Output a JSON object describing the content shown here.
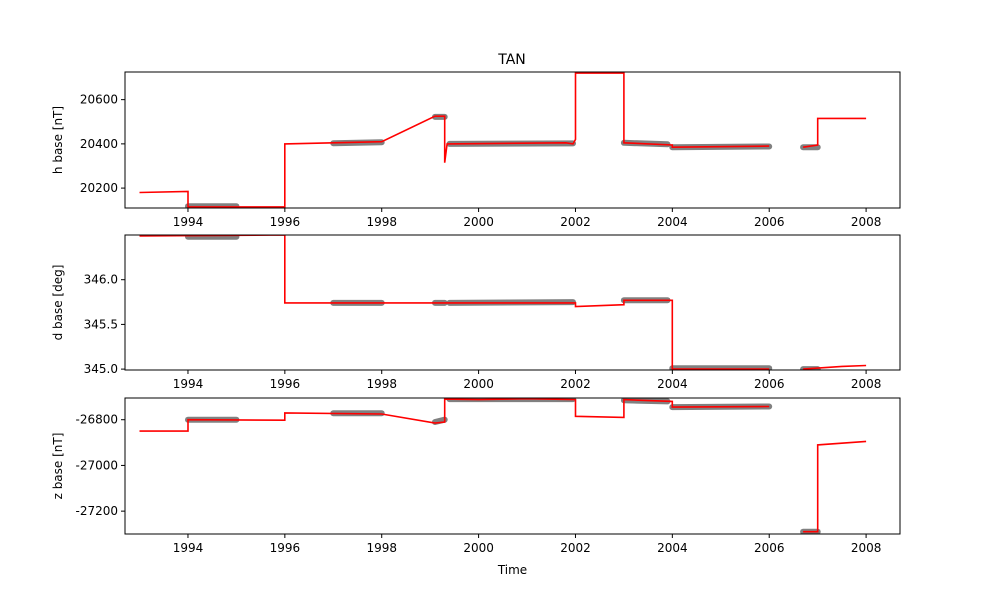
{
  "title": "TAN",
  "colors": {
    "observed": "#808080",
    "baseline": "#ff0000",
    "axes": "#000000"
  },
  "chart_data": [
    {
      "type": "line",
      "ylabel": "h base [nT]",
      "xlabel": "",
      "xlim": [
        1992.7,
        2008.7
      ],
      "ylim": [
        20110,
        20725
      ],
      "xticks": [
        "1994",
        "1996",
        "1998",
        "2000",
        "2002",
        "2004",
        "2006",
        "2008"
      ],
      "yticks": [
        "20200",
        "20400",
        "20600"
      ],
      "grid": false,
      "series": [
        {
          "role": "baseline",
          "color": "#ff0000",
          "x": [
            1993.0,
            1994.0,
            1994.0,
            1996.0,
            1996.0,
            1998.0,
            1999.1,
            1999.3,
            1999.3,
            1999.35,
            1999.35,
            2001.8,
            2001.95,
            2002.0,
            2002.0,
            2003.0,
            2003.0,
            2004.0,
            2004.0,
            2006.0,
            null,
            2006.7,
            2007.0,
            2007.0,
            2008.0
          ],
          "y": [
            20180,
            20185,
            20115,
            20115,
            20400,
            20410,
            20525,
            20525,
            20315,
            20400,
            20400,
            20405,
            20400,
            20420,
            20720,
            20720,
            20405,
            20395,
            20385,
            20390,
            null,
            20385,
            20395,
            20515,
            20515
          ]
        },
        {
          "role": "observed",
          "color": "#808080",
          "segments": [
            {
              "x": [
                1994.0,
                1995.0
              ],
              "y": [
                20118,
                20118
              ]
            },
            {
              "x": [
                1997.0,
                1998.0
              ],
              "y": [
                20403,
                20407
              ]
            },
            {
              "x": [
                1999.1,
                1999.3
              ],
              "y": [
                20522,
                20522
              ]
            },
            {
              "x": [
                1999.4,
                2001.95
              ],
              "y": [
                20400,
                20402
              ]
            },
            {
              "x": [
                2003.0,
                2003.9
              ],
              "y": [
                20405,
                20398
              ]
            },
            {
              "x": [
                2004.0,
                2006.0
              ],
              "y": [
                20385,
                20388
              ]
            },
            {
              "x": [
                2006.7,
                2007.0
              ],
              "y": [
                20385,
                20385
              ]
            }
          ]
        }
      ]
    },
    {
      "type": "line",
      "ylabel": "d base [deg]",
      "xlabel": "",
      "xlim": [
        1992.7,
        2008.7
      ],
      "ylim": [
        344.99,
        346.5
      ],
      "xticks": [
        "1994",
        "1996",
        "1998",
        "2000",
        "2002",
        "2004",
        "2006",
        "2008"
      ],
      "yticks": [
        "345.0",
        "345.5",
        "346.0"
      ],
      "grid": false,
      "series": [
        {
          "role": "baseline",
          "color": "#ff0000",
          "x": [
            1993.0,
            1996.0,
            1996.0,
            2002.0,
            2002.0,
            2003.0,
            2003.0,
            2004.0,
            2004.0,
            2006.0,
            null,
            2006.7,
            2007.5,
            2008.0
          ],
          "y": [
            346.49,
            346.5,
            345.74,
            345.74,
            345.7,
            345.72,
            345.77,
            345.77,
            345.0,
            345.0,
            null,
            345.0,
            345.03,
            345.04
          ]
        },
        {
          "role": "observed",
          "color": "#808080",
          "segments": [
            {
              "x": [
                1994.0,
                1995.0
              ],
              "y": [
                346.48,
                346.48
              ]
            },
            {
              "x": [
                1997.0,
                1998.0
              ],
              "y": [
                345.74,
                345.74
              ]
            },
            {
              "x": [
                1999.1,
                1999.3
              ],
              "y": [
                345.74,
                345.74
              ]
            },
            {
              "x": [
                1999.4,
                2001.95
              ],
              "y": [
                345.74,
                345.75
              ]
            },
            {
              "x": [
                2003.0,
                2003.9
              ],
              "y": [
                345.77,
                345.77
              ]
            },
            {
              "x": [
                2004.0,
                2006.0
              ],
              "y": [
                345.01,
                345.01
              ]
            },
            {
              "x": [
                2006.7,
                2007.0
              ],
              "y": [
                345.0,
                345.0
              ]
            }
          ]
        }
      ]
    },
    {
      "type": "line",
      "ylabel": "z base [nT]",
      "xlabel": "Time",
      "xlim": [
        1992.7,
        2008.7
      ],
      "ylim": [
        -27300,
        -26705
      ],
      "xticks": [
        "1994",
        "1996",
        "1998",
        "2000",
        "2002",
        "2004",
        "2006",
        "2008"
      ],
      "yticks": [
        "-26800",
        "-27000",
        "-27200"
      ],
      "grid": false,
      "series": [
        {
          "role": "baseline",
          "color": "#ff0000",
          "x": [
            1993.0,
            1994.0,
            1994.0,
            1996.0,
            1996.0,
            1998.0,
            1999.1,
            1999.3,
            1999.3,
            2000.0,
            2001.0,
            2002.0,
            2002.0,
            2003.0,
            2003.0,
            2004.0,
            2004.0,
            2006.0,
            null,
            2006.7,
            2007.0,
            2007.0,
            2008.0
          ],
          "y": [
            -26850,
            -26850,
            -26800,
            -26802,
            -26770,
            -26775,
            -26815,
            -26810,
            -26710,
            -26712,
            -26708,
            -26712,
            -26785,
            -26790,
            -26712,
            -26720,
            -26745,
            -26742,
            null,
            -27290,
            -27290,
            -26910,
            -26895
          ]
        },
        {
          "role": "observed",
          "color": "#808080",
          "segments": [
            {
              "x": [
                1994.0,
                1995.0
              ],
              "y": [
                -26800,
                -26800
              ]
            },
            {
              "x": [
                1997.0,
                1998.0
              ],
              "y": [
                -26772,
                -26772
              ]
            },
            {
              "x": [
                1999.1,
                1999.3
              ],
              "y": [
                -26810,
                -26800
              ]
            },
            {
              "x": [
                1999.4,
                2001.95
              ],
              "y": [
                -26710,
                -26710
              ]
            },
            {
              "x": [
                2003.0,
                2003.9
              ],
              "y": [
                -26715,
                -26720
              ]
            },
            {
              "x": [
                2004.0,
                2006.0
              ],
              "y": [
                -26745,
                -26742
              ]
            },
            {
              "x": [
                2006.7,
                2007.0
              ],
              "y": [
                -27290,
                -27290
              ]
            }
          ]
        }
      ]
    }
  ]
}
